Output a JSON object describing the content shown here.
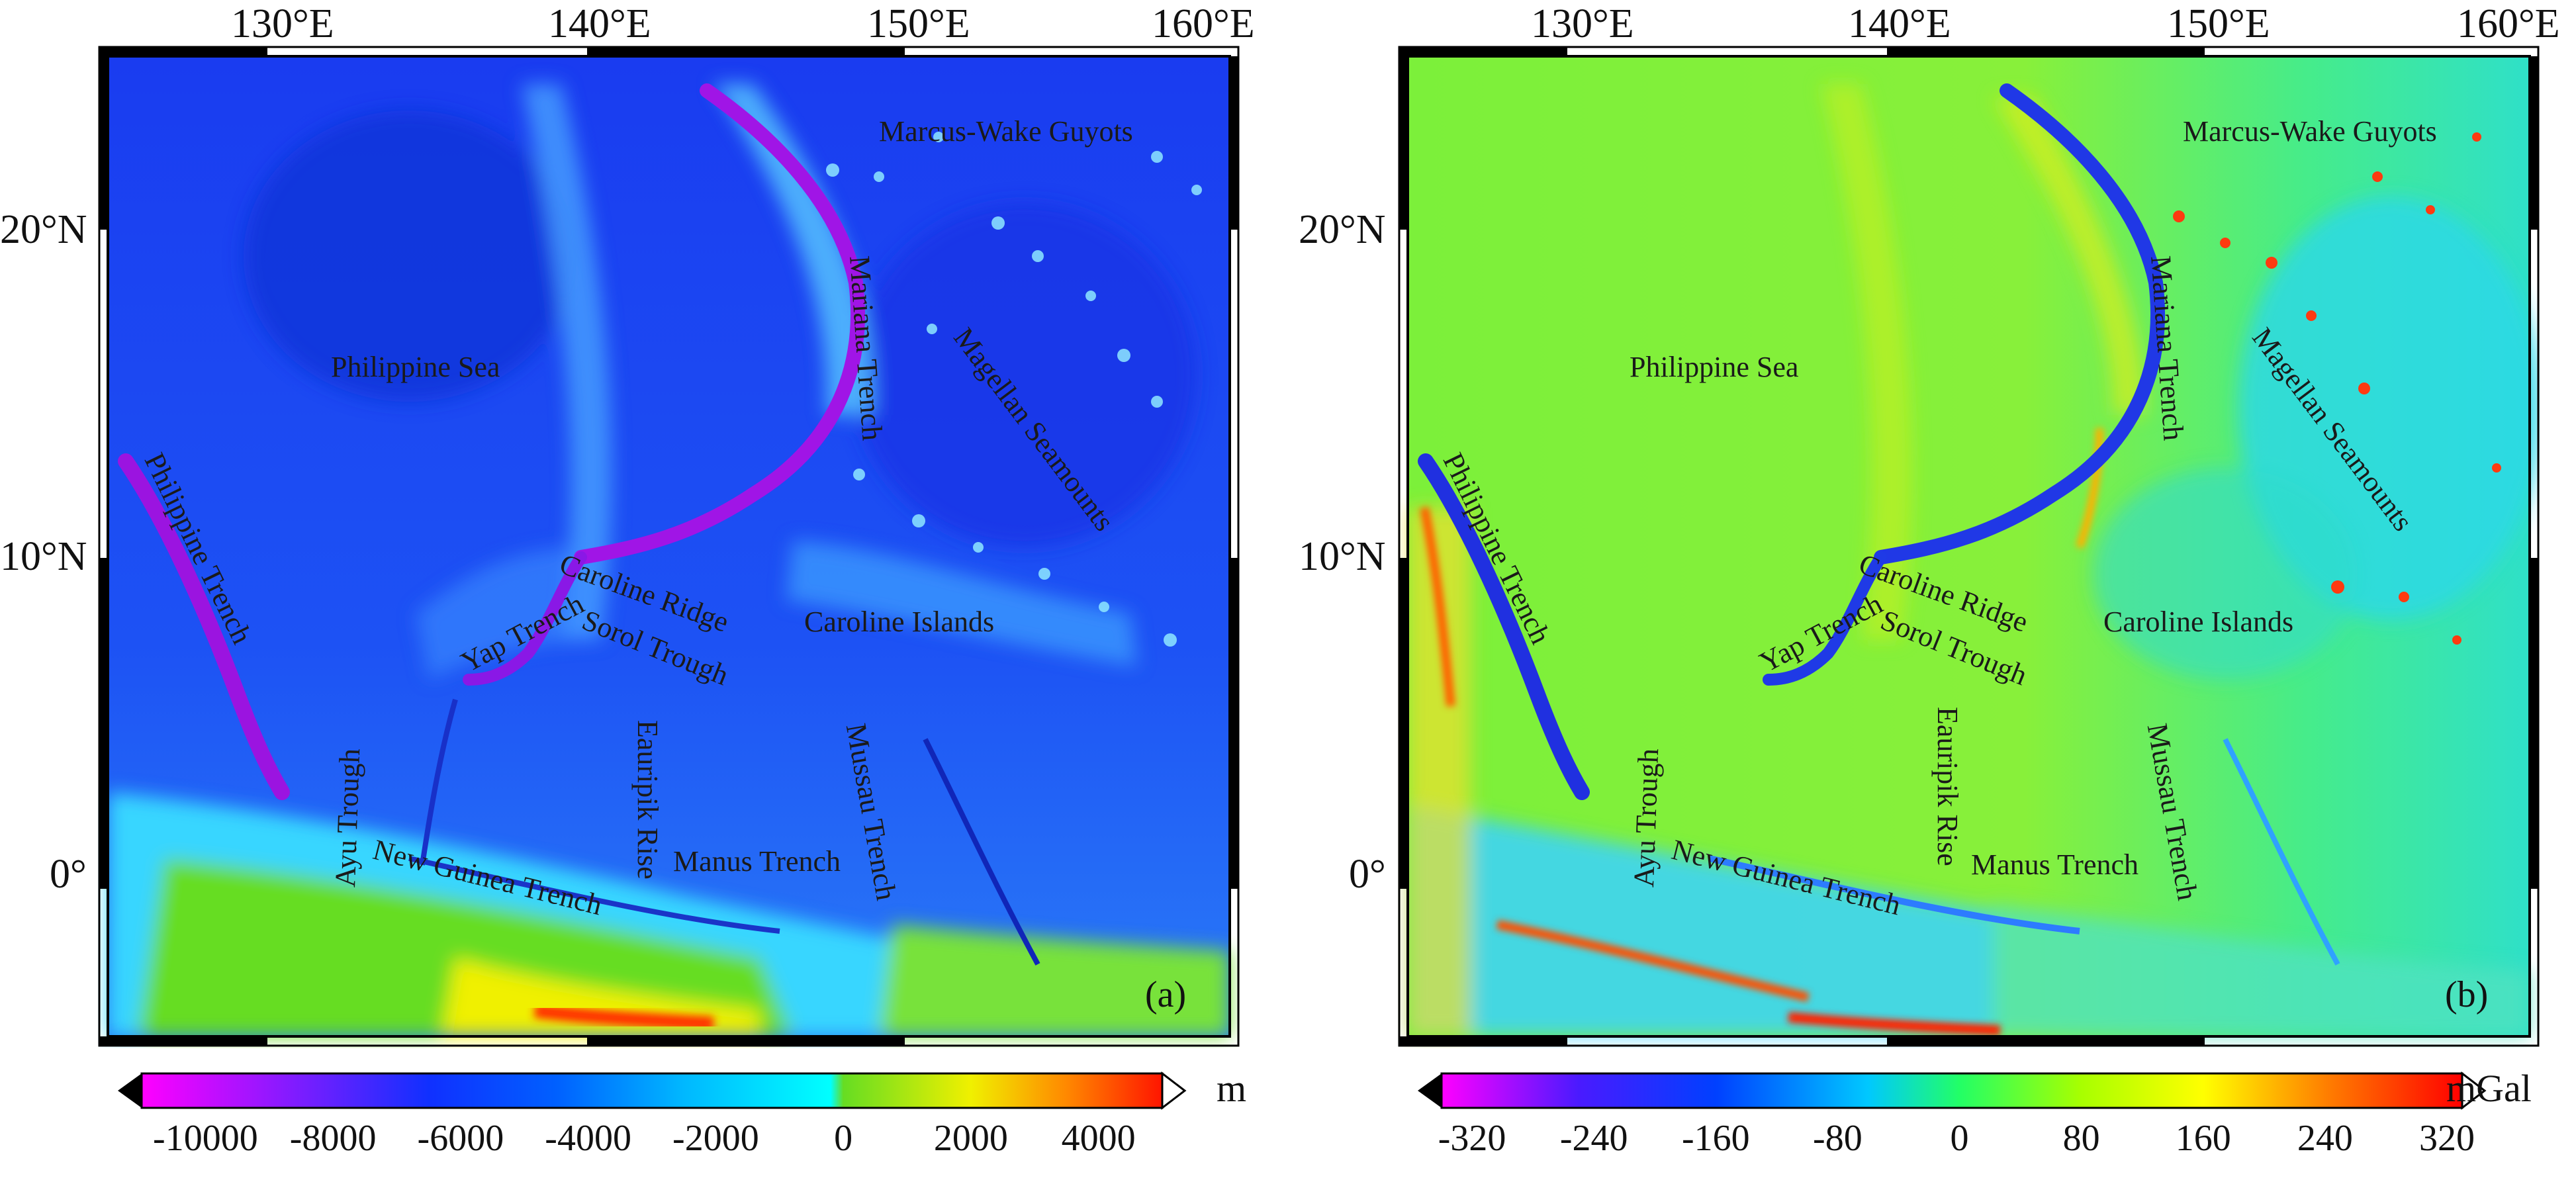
{
  "panels": [
    {
      "id": "a",
      "tag": "(a)",
      "lon_labels": [
        "130°E",
        "140°E",
        "150°E",
        "160°E"
      ],
      "lat_labels": [
        "20°N",
        "10°N",
        "0°"
      ],
      "places": [
        {
          "key": "marcus",
          "text": "Marcus-Wake Guyots"
        },
        {
          "key": "philsea",
          "text": "Philippine Sea"
        },
        {
          "key": "mariana",
          "text": "Mariana Trench"
        },
        {
          "key": "magellan",
          "text": "Magellan Seamounts"
        },
        {
          "key": "phtrench",
          "text": "Philippine Trench"
        },
        {
          "key": "caroline_ridge",
          "text": "Caroline Ridge"
        },
        {
          "key": "caroline_islands",
          "text": "Caroline Islands"
        },
        {
          "key": "yap",
          "text": "Yap Trench"
        },
        {
          "key": "sorol",
          "text": "Sorol Trough"
        },
        {
          "key": "ayu",
          "text": "Ayu Trough"
        },
        {
          "key": "eauripik",
          "text": "Eauripik Rise"
        },
        {
          "key": "mussau",
          "text": "Mussau Trench"
        },
        {
          "key": "newguinea",
          "text": "New Guinea Trench"
        },
        {
          "key": "manus",
          "text": "Manus Trench"
        }
      ],
      "colorbar": {
        "unit": "m",
        "ticks": [
          "-10000",
          "-8000",
          "-6000",
          "-4000",
          "-2000",
          "0",
          "2000",
          "4000"
        ],
        "min": -11000,
        "max": 5000,
        "tick_values": [
          -10000,
          -8000,
          -6000,
          -4000,
          -2000,
          0,
          2000,
          4000
        ],
        "stops": [
          {
            "v": -11000,
            "c": "#ff00ff"
          },
          {
            "v": -8500,
            "c": "#7a1dff"
          },
          {
            "v": -6500,
            "c": "#1030ff"
          },
          {
            "v": -4500,
            "c": "#0060ff"
          },
          {
            "v": -2500,
            "c": "#00b8ff"
          },
          {
            "v": -200,
            "c": "#00ffff"
          },
          {
            "v": 0,
            "c": "#66dd22"
          },
          {
            "v": 2000,
            "c": "#f0f000"
          },
          {
            "v": 3500,
            "c": "#ff8800"
          },
          {
            "v": 5000,
            "c": "#ff1500"
          }
        ]
      }
    },
    {
      "id": "b",
      "tag": "(b)",
      "lon_labels": [
        "130°E",
        "140°E",
        "150°E",
        "160°E"
      ],
      "lat_labels": [
        "20°N",
        "10°N",
        "0°"
      ],
      "places": [
        {
          "key": "marcus",
          "text": "Marcus-Wake Guyots"
        },
        {
          "key": "philsea",
          "text": "Philippine Sea"
        },
        {
          "key": "mariana",
          "text": "Mariana Trench"
        },
        {
          "key": "magellan",
          "text": "Magellan Seamounts"
        },
        {
          "key": "phtrench",
          "text": "Philippine Trench"
        },
        {
          "key": "caroline_ridge",
          "text": "Caroline Ridge"
        },
        {
          "key": "caroline_islands",
          "text": "Caroline Islands"
        },
        {
          "key": "yap",
          "text": "Yap Trench"
        },
        {
          "key": "sorol",
          "text": "Sorol Trough"
        },
        {
          "key": "ayu",
          "text": "Ayu Trough"
        },
        {
          "key": "eauripik",
          "text": "Eauripik Rise"
        },
        {
          "key": "mussau",
          "text": "Mussau Trench"
        },
        {
          "key": "newguinea",
          "text": "New Guinea Trench"
        },
        {
          "key": "manus",
          "text": "Manus Trench"
        }
      ],
      "colorbar": {
        "unit": "mGal",
        "ticks": [
          "-320",
          "-240",
          "-160",
          "-80",
          "0",
          "80",
          "160",
          "240",
          "320"
        ],
        "min": -340,
        "max": 330,
        "tick_values": [
          -320,
          -240,
          -160,
          -80,
          0,
          80,
          160,
          240,
          320
        ],
        "stops": [
          {
            "v": -340,
            "c": "#ff00ff"
          },
          {
            "v": -250,
            "c": "#4a1aff"
          },
          {
            "v": -160,
            "c": "#0040ff"
          },
          {
            "v": -60,
            "c": "#00c8ff"
          },
          {
            "v": 0,
            "c": "#22ff66"
          },
          {
            "v": 80,
            "c": "#a8ff00"
          },
          {
            "v": 160,
            "c": "#ffff00"
          },
          {
            "v": 240,
            "c": "#ff8000"
          },
          {
            "v": 330,
            "c": "#ff0000"
          }
        ]
      }
    }
  ]
}
